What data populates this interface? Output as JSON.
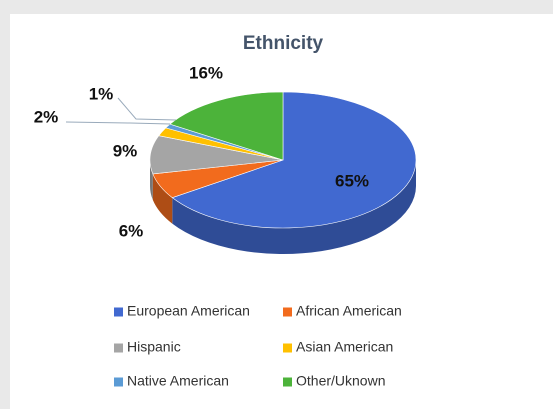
{
  "chart_data": {
    "type": "pie",
    "title": "Ethnicity",
    "categories": [
      "European American",
      "African American",
      "Hispanic",
      "Asian American",
      "Native American",
      "Other/Uknown"
    ],
    "values": [
      65,
      6,
      9,
      2,
      1,
      16
    ],
    "value_labels": [
      "65%",
      "6%",
      "9%",
      "2%",
      "1%",
      "16%"
    ],
    "colors": [
      "#4169d0",
      "#f26b1d",
      "#a5a5a5",
      "#ffc000",
      "#5b9bd5",
      "#4cb33a"
    ],
    "legend": "bottom"
  }
}
